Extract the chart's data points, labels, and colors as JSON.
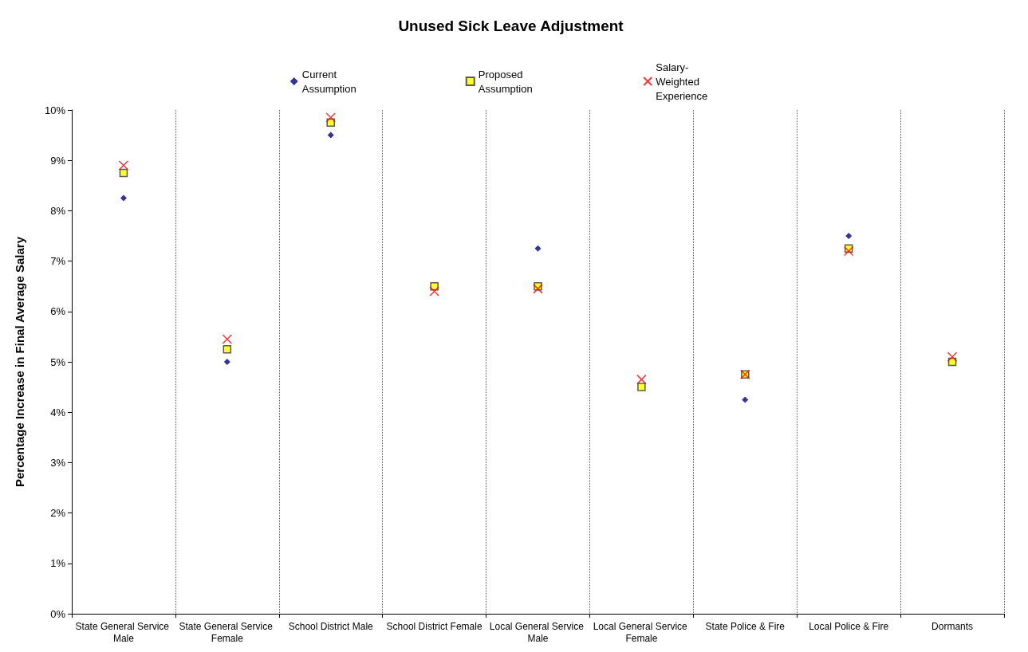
{
  "chart_data": {
    "type": "scatter",
    "title": "Unused Sick Leave Adjustment",
    "ylabel": "Percentage Increase in Final Average Salary",
    "categories": [
      "State General Service Male",
      "State General Service Female",
      "School District Male",
      "School District Female",
      "Local General Service Male",
      "Local General Service Female",
      "State Police & Fire",
      "Local Police & Fire",
      "Dormants"
    ],
    "series": [
      {
        "name": "Current Assumption",
        "color": "#000080",
        "marker": "diamond",
        "values": [
          8.25,
          5.0,
          9.5,
          null,
          7.25,
          null,
          4.25,
          7.5,
          null
        ]
      },
      {
        "name": "Proposed Assumption",
        "color": "#ffff00",
        "marker": "square",
        "values": [
          8.75,
          5.25,
          9.75,
          6.5,
          6.5,
          4.5,
          4.75,
          7.25,
          5.0
        ]
      },
      {
        "name": "Salary-Weighted Experience",
        "color": "#ff0000",
        "marker": "cross",
        "values": [
          8.9,
          5.45,
          9.85,
          6.4,
          6.45,
          4.65,
          4.75,
          7.2,
          5.1
        ]
      }
    ],
    "ylim": [
      0,
      10
    ],
    "yticks": [
      {
        "value": 0,
        "label": "0%"
      },
      {
        "value": 1,
        "label": "1%"
      },
      {
        "value": 2,
        "label": "2%"
      },
      {
        "value": 3,
        "label": "3%"
      },
      {
        "value": 4,
        "label": "4%"
      },
      {
        "value": 5,
        "label": "5%"
      },
      {
        "value": 6,
        "label": "6%"
      },
      {
        "value": 7,
        "label": "7%"
      },
      {
        "value": 8,
        "label": "8%"
      },
      {
        "value": 9,
        "label": "9%"
      },
      {
        "value": 10,
        "label": "10%"
      }
    ],
    "grid": "x",
    "legend": "top"
  }
}
